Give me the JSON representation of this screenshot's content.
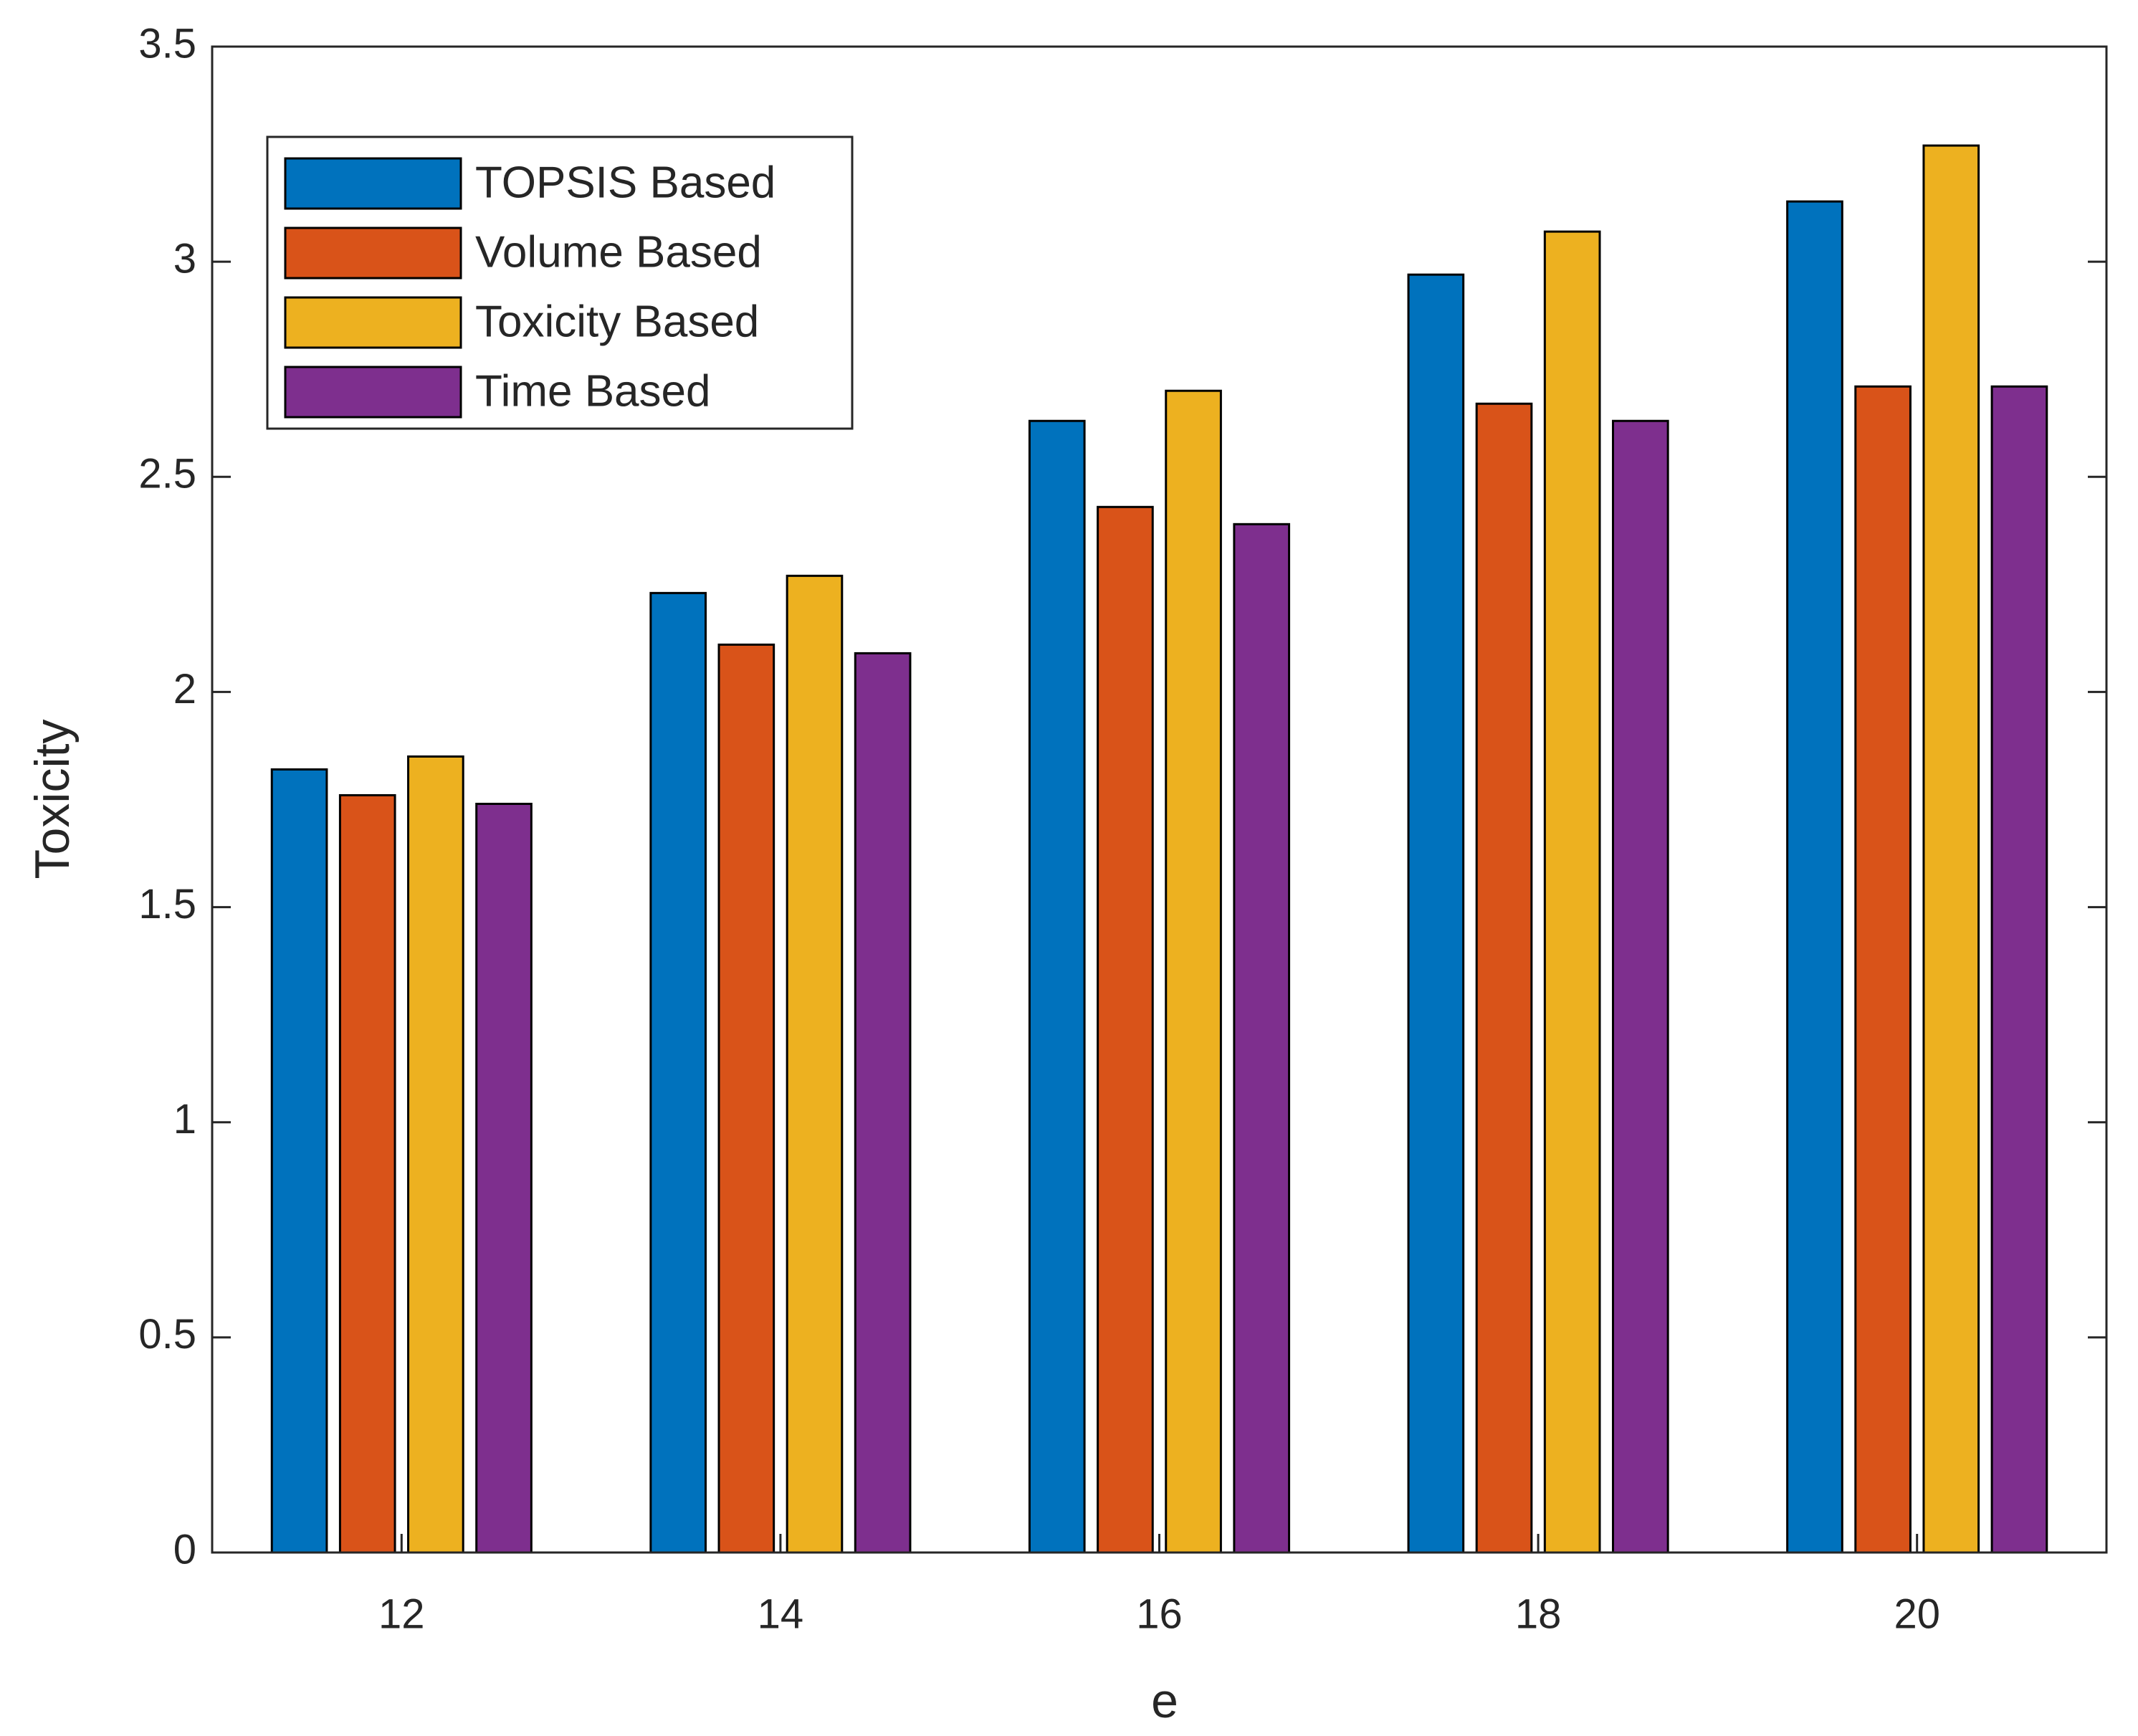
{
  "chart_data": {
    "type": "bar",
    "x_label": "e",
    "y_label": "Toxicity",
    "categories": [
      12,
      14,
      16,
      18,
      20
    ],
    "series": [
      {
        "name": "TOPSIS Based",
        "color": "#0072bd",
        "values": [
          1.82,
          2.23,
          2.63,
          2.97,
          3.14
        ]
      },
      {
        "name": "Volume Based",
        "color": "#d95319",
        "values": [
          1.76,
          2.11,
          2.43,
          2.67,
          2.71
        ]
      },
      {
        "name": "Toxicity Based",
        "color": "#edb120",
        "values": [
          1.85,
          2.27,
          2.7,
          3.07,
          3.27
        ]
      },
      {
        "name": "Time Based",
        "color": "#7e2f8e",
        "values": [
          1.74,
          2.09,
          2.39,
          2.63,
          2.71
        ]
      }
    ],
    "ylim": [
      0,
      3.5
    ],
    "yticks": [
      0,
      0.5,
      1,
      1.5,
      2,
      2.5,
      3,
      3.5
    ],
    "grid": false,
    "legend": "northwest"
  }
}
